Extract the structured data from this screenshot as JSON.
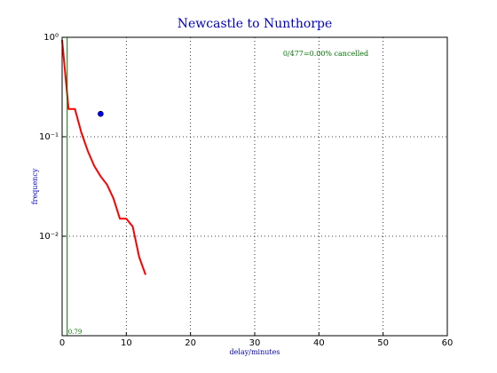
{
  "chart_data": {
    "type": "line",
    "title": "Newcastle to Nunthorpe",
    "xlabel": "delay/minutes",
    "ylabel": "frequency",
    "annotation": "0/477=0.00% cancelled",
    "series": [
      {
        "color": "#ff0000",
        "x": [
          0,
          1,
          2,
          3,
          4,
          5,
          6,
          7,
          8,
          9,
          10,
          11,
          12,
          13
        ],
        "values": [
          0.94,
          0.19,
          0.19,
          0.11,
          0.072,
          0.051,
          0.04,
          0.033,
          0.024,
          0.015,
          0.015,
          0.0125,
          0.0062,
          0.0041
        ]
      }
    ],
    "marker": {
      "x": 6,
      "y": 0.17,
      "color": "#0000ff"
    },
    "vline": {
      "x": 0.79,
      "color": "#007700"
    },
    "xlim": [
      0,
      60
    ],
    "xticks": [
      0,
      10,
      20,
      30,
      40,
      50,
      60
    ],
    "ylim": [
      0.001,
      1
    ],
    "yticks": [
      {
        "value": 1,
        "label": "10⁰"
      },
      {
        "value": 0.1,
        "label": "10⁻¹"
      },
      {
        "value": 0.01,
        "label": "10⁻²"
      }
    ],
    "yscale": "log",
    "grid": true
  }
}
